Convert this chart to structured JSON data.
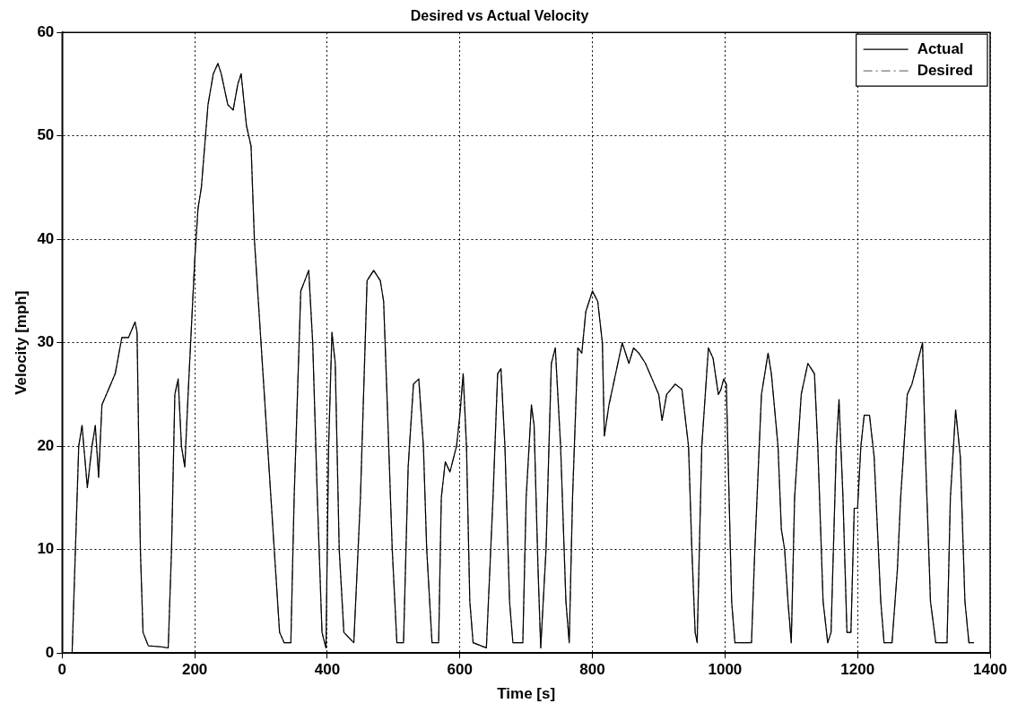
{
  "chart_data": {
    "type": "line",
    "title": "Desired vs Actual Velocity",
    "xlabel": "Time [s]",
    "ylabel": "Velocity [mph]",
    "x": [
      0,
      15,
      20,
      25,
      30,
      38,
      45,
      50,
      55,
      60,
      70,
      80,
      90,
      100,
      110,
      113,
      118,
      122,
      130,
      150,
      160,
      165,
      170,
      175,
      180,
      185,
      190,
      200,
      205,
      210,
      220,
      228,
      235,
      240,
      250,
      258,
      265,
      270,
      278,
      285,
      290,
      300,
      310,
      320,
      328,
      335,
      345,
      350,
      360,
      372,
      378,
      385,
      392,
      398,
      402,
      407,
      412,
      418,
      425,
      440,
      450,
      460,
      470,
      480,
      485,
      490,
      498,
      505,
      515,
      522,
      530,
      538,
      545,
      550,
      558,
      568,
      572,
      578,
      585,
      595,
      600,
      605,
      610,
      615,
      620,
      640,
      650,
      657,
      662,
      668,
      675,
      680,
      695,
      700,
      708,
      712,
      718,
      722,
      730,
      738,
      744,
      752,
      760,
      765,
      770,
      778,
      784,
      790,
      800,
      808,
      815,
      818,
      825,
      835,
      845,
      855,
      862,
      870,
      880,
      890,
      900,
      905,
      912,
      925,
      935,
      945,
      950,
      955,
      958,
      965,
      975,
      982,
      990,
      994,
      998,
      1002,
      1010,
      1015,
      1040,
      1045,
      1055,
      1065,
      1070,
      1080,
      1085,
      1090,
      1095,
      1100,
      1105,
      1115,
      1125,
      1135,
      1140,
      1148,
      1155,
      1160,
      1168,
      1172,
      1178,
      1184,
      1190,
      1195,
      1200,
      1205,
      1210,
      1218,
      1225,
      1235,
      1240,
      1252,
      1260,
      1265,
      1275,
      1282,
      1290,
      1298,
      1302,
      1310,
      1318,
      1335,
      1340,
      1348,
      1355,
      1362,
      1368,
      1375
    ],
    "series": [
      {
        "name": "Actual",
        "color": "#000000",
        "line_style": "solid",
        "values": [
          0,
          0,
          10,
          20,
          22,
          16,
          20,
          22,
          17,
          24,
          25.5,
          27,
          30.5,
          30.5,
          32,
          31,
          10,
          2,
          0.7,
          0.6,
          0.5,
          10,
          25,
          26.5,
          20,
          18,
          25,
          38,
          43,
          45,
          53,
          56,
          57,
          56,
          53,
          52.5,
          55,
          56,
          51,
          49,
          40,
          30,
          20,
          10,
          2,
          1,
          1,
          15,
          35,
          37,
          30,
          15,
          2,
          0.5,
          20,
          31,
          28,
          10,
          2,
          1,
          15,
          36,
          37,
          36,
          34,
          25,
          10,
          1,
          1,
          18,
          26,
          26.5,
          20,
          10,
          1,
          1,
          15,
          18.5,
          17.5,
          20,
          23,
          27,
          20,
          5,
          1,
          0.5,
          15,
          27,
          27.5,
          20,
          5,
          1,
          1,
          15,
          24,
          22,
          8,
          0.5,
          10,
          28,
          29.5,
          20,
          5,
          1,
          15,
          29.5,
          29,
          33,
          35,
          34,
          30,
          21,
          24,
          27,
          30,
          28,
          29.5,
          29,
          28,
          26.5,
          25,
          22.5,
          25,
          26,
          25.5,
          20,
          10,
          2,
          1,
          20,
          29.5,
          28.5,
          25,
          25.5,
          26.5,
          26,
          5,
          1,
          1,
          10,
          25,
          29,
          27,
          20,
          12,
          10,
          5,
          1,
          15,
          25,
          28,
          27,
          20,
          5,
          1,
          2,
          20,
          24.5,
          15,
          2,
          2,
          14,
          14,
          20,
          23,
          23,
          19,
          5,
          1,
          1,
          8,
          15,
          25,
          26,
          28,
          30,
          20,
          5,
          1,
          1,
          15,
          23.5,
          19,
          5,
          1,
          1
        ]
      },
      {
        "name": "Desired",
        "color": "#777777",
        "line_style": "dashdot",
        "values": [
          0,
          0,
          10,
          20,
          22,
          16,
          20,
          22,
          17,
          24,
          25.5,
          27,
          30.5,
          30.5,
          32,
          31,
          10,
          2,
          0.7,
          0.6,
          0.5,
          10,
          25,
          26.5,
          20,
          18,
          25,
          38,
          43,
          45,
          53,
          56,
          57,
          56,
          53,
          52.5,
          55,
          56,
          51,
          49,
          40,
          30,
          20,
          10,
          2,
          1,
          1,
          15,
          35,
          37,
          30,
          15,
          2,
          0.5,
          20,
          31,
          28,
          10,
          2,
          1,
          15,
          36,
          37,
          36,
          34,
          25,
          10,
          1,
          1,
          18,
          26,
          26.5,
          20,
          10,
          1,
          1,
          15,
          18.5,
          17.5,
          20,
          23,
          27,
          20,
          5,
          1,
          0.5,
          15,
          27,
          27.5,
          20,
          5,
          1,
          1,
          15,
          24,
          22,
          8,
          0.5,
          10,
          28,
          29.5,
          20,
          5,
          1,
          15,
          29.5,
          29,
          33,
          35,
          34,
          30,
          21,
          24,
          27,
          30,
          28,
          29.5,
          29,
          28,
          26.5,
          25,
          22.5,
          25,
          26,
          25.5,
          20,
          10,
          2,
          1,
          20,
          29.5,
          28.5,
          25,
          25.5,
          26.5,
          26,
          5,
          1,
          1,
          10,
          25,
          29,
          27,
          20,
          12,
          10,
          5,
          1,
          15,
          25,
          28,
          27,
          20,
          5,
          1,
          2,
          20,
          24.5,
          15,
          2,
          2,
          14,
          14,
          20,
          23,
          23,
          19,
          5,
          1,
          1,
          8,
          15,
          25,
          26,
          28,
          30,
          20,
          5,
          1,
          1,
          15,
          23.5,
          19,
          5,
          1,
          1
        ]
      }
    ],
    "xlim": [
      0,
      1400
    ],
    "xticks": [
      0,
      200,
      400,
      600,
      800,
      1000,
      1200,
      1400
    ],
    "ylim": [
      0,
      60
    ],
    "yticks": [
      0,
      10,
      20,
      30,
      40,
      50,
      60
    ],
    "grid": true,
    "legend": "top right",
    "marker": "none"
  }
}
